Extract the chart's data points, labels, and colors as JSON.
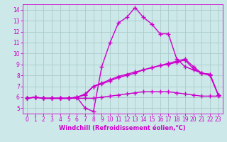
{
  "background_color": "#cce8e8",
  "grid_color": "#aacccc",
  "line_color": "#cc00cc",
  "marker": "+",
  "marker_size": 4,
  "marker_linewidth": 1.0,
  "line_width": 1.0,
  "xlabel": "Windchill (Refroidissement éolien,°C)",
  "xlabel_fontsize": 6,
  "tick_fontsize": 5.5,
  "xlim": [
    -0.5,
    23.5
  ],
  "ylim": [
    4.5,
    14.5
  ],
  "yticks": [
    5,
    6,
    7,
    8,
    9,
    10,
    11,
    12,
    13,
    14
  ],
  "xticks": [
    0,
    1,
    2,
    3,
    4,
    5,
    6,
    7,
    8,
    9,
    10,
    11,
    12,
    13,
    14,
    15,
    16,
    17,
    18,
    19,
    20,
    21,
    22,
    23
  ],
  "series": [
    {
      "x": [
        0,
        1,
        2,
        3,
        4,
        5,
        6,
        7,
        8,
        9,
        10,
        11,
        12,
        13,
        14,
        15,
        16,
        17,
        18,
        19,
        20,
        21,
        22,
        23
      ],
      "y": [
        5.9,
        6.0,
        5.9,
        5.9,
        5.9,
        5.9,
        6.0,
        5.0,
        4.7,
        8.8,
        11.0,
        12.8,
        13.3,
        14.2,
        13.3,
        12.7,
        11.8,
        11.8,
        9.5,
        8.8,
        8.5,
        8.2,
        8.1,
        6.2
      ]
    },
    {
      "x": [
        0,
        1,
        2,
        3,
        4,
        5,
        6,
        7,
        8,
        9,
        10,
        11,
        12,
        13,
        14,
        15,
        16,
        17,
        18,
        19,
        20,
        21,
        22,
        23
      ],
      "y": [
        5.9,
        6.0,
        5.9,
        5.9,
        5.9,
        5.9,
        6.0,
        6.2,
        7.0,
        7.2,
        7.5,
        7.8,
        8.0,
        8.2,
        8.5,
        8.7,
        8.9,
        9.1,
        9.3,
        9.5,
        8.8,
        8.2,
        8.1,
        6.2
      ]
    },
    {
      "x": [
        0,
        1,
        2,
        3,
        4,
        5,
        6,
        7,
        8,
        9,
        10,
        11,
        12,
        13,
        14,
        15,
        16,
        17,
        18,
        19,
        20,
        21,
        22,
        23
      ],
      "y": [
        5.9,
        6.0,
        5.9,
        5.9,
        5.9,
        5.9,
        6.0,
        6.3,
        7.0,
        7.3,
        7.6,
        7.9,
        8.1,
        8.3,
        8.5,
        8.7,
        8.9,
        9.0,
        9.2,
        9.4,
        8.6,
        8.2,
        8.0,
        6.2
      ]
    },
    {
      "x": [
        0,
        1,
        2,
        3,
        4,
        5,
        6,
        7,
        8,
        9,
        10,
        11,
        12,
        13,
        14,
        15,
        16,
        17,
        18,
        19,
        20,
        21,
        22,
        23
      ],
      "y": [
        5.9,
        6.0,
        5.9,
        5.9,
        5.9,
        5.9,
        5.9,
        5.9,
        5.9,
        6.0,
        6.1,
        6.2,
        6.3,
        6.4,
        6.5,
        6.5,
        6.5,
        6.5,
        6.4,
        6.3,
        6.2,
        6.1,
        6.1,
        6.1
      ]
    }
  ]
}
